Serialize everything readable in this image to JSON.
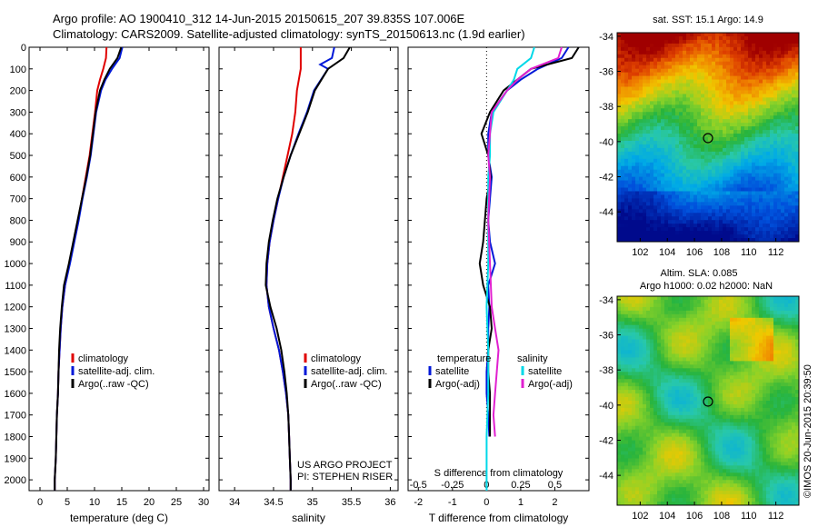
{
  "header": {
    "line1": "Argo profile: AO 1900410_312 14-Jun-2015 20150615_207 39.835S 107.006E",
    "line2": "Climatology: CARS2009. Satellite-adjusted climatology: synTS_20150613.nc (1.9d earlier)"
  },
  "colors": {
    "climatology": "#e00000",
    "satellite": "#0018d8",
    "argo": "#000000",
    "sat_salinity": "#00d8e8",
    "argo_salinity": "#e020d0"
  },
  "chart_data": [
    {
      "type": "line",
      "name": "temperature",
      "xlabel": "temperature (deg C)",
      "xlim": [
        -2,
        31
      ],
      "ylim": [
        2050,
        0
      ],
      "xticks": [
        "0",
        "5",
        "10",
        "15",
        "20",
        "25",
        "30"
      ],
      "yticks": [
        "0",
        "100",
        "200",
        "300",
        "400",
        "500",
        "600",
        "700",
        "800",
        "900",
        "1000",
        "1100",
        "1200",
        "1300",
        "1400",
        "1500",
        "1600",
        "1700",
        "1800",
        "1900",
        "2000"
      ],
      "legend": [
        "climatology",
        "satellite-adj. clim.",
        "Argo(..raw -QC)"
      ],
      "series": [
        {
          "name": "climatology",
          "depth": [
            0,
            50,
            100,
            150,
            200,
            300,
            400,
            500,
            600,
            700,
            800,
            900,
            1000,
            1100,
            1200,
            1300,
            1400,
            1500,
            1600,
            1700,
            1800,
            1900,
            2000,
            2050
          ],
          "values": [
            12.2,
            12.1,
            11.6,
            11.0,
            10.5,
            10.1,
            9.6,
            9.1,
            8.4,
            7.7,
            7.0,
            6.2,
            5.4,
            4.6,
            4.1,
            3.8,
            3.6,
            3.4,
            3.3,
            3.1,
            3.0,
            2.9,
            2.7,
            2.7
          ]
        },
        {
          "name": "satellite-adj. clim.",
          "depth": [
            0,
            50,
            100,
            150,
            200,
            300,
            400,
            500,
            600,
            700,
            800,
            900,
            1000,
            1100,
            1200,
            1300,
            1400,
            1500,
            1600,
            1700,
            1800,
            1900,
            2000,
            2050
          ],
          "values": [
            15.1,
            14.6,
            13.2,
            12.0,
            11.2,
            10.3,
            9.8,
            9.3,
            8.6,
            7.8,
            7.1,
            6.3,
            5.5,
            4.6,
            4.1,
            3.8,
            3.6,
            3.4,
            3.3,
            3.1,
            3.0,
            2.9,
            2.7,
            2.7
          ]
        },
        {
          "name": "Argo",
          "depth": [
            0,
            50,
            100,
            150,
            200,
            300,
            400,
            500,
            600,
            700,
            800,
            900,
            1000,
            1100,
            1200,
            1300,
            1400,
            1500,
            1600,
            1700,
            1800,
            1900,
            2000,
            2050
          ],
          "values": [
            14.9,
            14.2,
            12.8,
            11.8,
            11.0,
            10.2,
            9.7,
            9.2,
            8.5,
            7.7,
            6.9,
            6.1,
            5.3,
            4.4,
            4.0,
            3.7,
            3.5,
            3.4,
            3.3,
            3.1,
            3.0,
            2.9,
            2.7,
            2.7
          ]
        }
      ]
    },
    {
      "type": "line",
      "name": "salinity",
      "xlabel": "salinity",
      "xlim": [
        33.8,
        36.1
      ],
      "ylim": [
        2050,
        0
      ],
      "xticks": [
        "34",
        "34.5",
        "35",
        "35.5",
        "36"
      ],
      "legend": [
        "climatology",
        "satellite-adj. clim.",
        "Argo(..raw -QC)"
      ],
      "annotation": [
        "US ARGO PROJECT",
        "PI: STEPHEN RISER"
      ],
      "series": [
        {
          "name": "climatology",
          "depth": [
            0,
            50,
            100,
            200,
            300,
            400,
            500,
            600,
            700,
            800,
            900,
            1000,
            1100,
            1200,
            1300,
            1400,
            1500,
            1600,
            1700,
            1800,
            1900,
            2000,
            2050
          ],
          "values": [
            34.85,
            34.85,
            34.85,
            34.8,
            34.78,
            34.74,
            34.68,
            34.62,
            34.56,
            34.5,
            34.45,
            34.42,
            34.41,
            34.44,
            34.5,
            34.57,
            34.62,
            34.66,
            34.69,
            34.7,
            34.71,
            34.72,
            34.72
          ]
        },
        {
          "name": "satellite-adj. clim.",
          "depth": [
            0,
            50,
            80,
            100,
            200,
            300,
            400,
            500,
            600,
            700,
            800,
            900,
            1000,
            1100,
            1200,
            1300,
            1400,
            1500,
            1600,
            1700,
            1800,
            1900,
            2000,
            2050
          ],
          "values": [
            35.28,
            35.25,
            35.1,
            35.2,
            35.02,
            34.93,
            34.82,
            34.72,
            34.63,
            34.56,
            34.5,
            34.45,
            34.42,
            34.41,
            34.44,
            34.5,
            34.57,
            34.62,
            34.66,
            34.69,
            34.7,
            34.71,
            34.72,
            34.72
          ]
        },
        {
          "name": "Argo",
          "depth": [
            0,
            50,
            100,
            200,
            300,
            400,
            500,
            600,
            700,
            800,
            900,
            1000,
            1100,
            1200,
            1300,
            1400,
            1500,
            1600,
            1700,
            1800,
            1900,
            2000,
            2050
          ],
          "values": [
            35.48,
            35.4,
            35.2,
            35.03,
            34.94,
            34.83,
            34.72,
            34.63,
            34.55,
            34.49,
            34.44,
            34.41,
            34.4,
            34.46,
            34.54,
            34.6,
            34.64,
            34.67,
            34.69,
            34.7,
            34.71,
            34.72,
            34.72
          ]
        }
      ]
    },
    {
      "type": "line",
      "name": "difference",
      "xlabel": "T difference from climatology",
      "xlabel_top": "S difference from climatology",
      "xlim": [
        -2.3,
        3.0
      ],
      "ylim": [
        2050,
        0
      ],
      "xticks": [
        "-2",
        "-1",
        "0",
        "1",
        "2"
      ],
      "xticks_top": [
        "-0.5",
        "-0.25",
        "0",
        "0.25",
        "0.5"
      ],
      "legend_left_title": "temperature",
      "legend_right_title": "salinity",
      "legend_left": [
        "satellite",
        "Argo(-adj)"
      ],
      "legend_right": [
        "satellite",
        "Argo(-adj)"
      ],
      "series": [
        {
          "name": "T satellite",
          "depth": [
            0,
            50,
            100,
            150,
            200,
            300,
            400,
            500,
            600,
            700,
            800,
            900,
            1000,
            1100,
            1200,
            1300,
            1400,
            1500,
            1600,
            1700,
            1800
          ],
          "values": [
            2.4,
            2.2,
            1.5,
            1.0,
            0.6,
            0.15,
            0.05,
            0.05,
            0.15,
            0.1,
            0.05,
            0.1,
            0.25,
            0.05,
            0.08,
            0.05,
            0.05,
            0.0,
            0.0,
            0.05,
            0.08
          ]
        },
        {
          "name": "T Argo",
          "depth": [
            0,
            50,
            100,
            150,
            200,
            300,
            400,
            500,
            600,
            700,
            800,
            900,
            1000,
            1100,
            1200,
            1300,
            1400,
            1500,
            1600,
            1700,
            1800
          ],
          "values": [
            2.7,
            2.5,
            1.3,
            0.9,
            0.5,
            0.1,
            -0.15,
            0.05,
            0.12,
            0.0,
            -0.05,
            -0.1,
            -0.2,
            -0.1,
            0.1,
            0.15,
            0.05,
            0.05,
            0.1,
            0.1,
            0.1
          ]
        },
        {
          "name": "S satellite",
          "depth": [
            0,
            50,
            100,
            150,
            200,
            300,
            400,
            500,
            600,
            800,
            1000,
            1200,
            1400,
            1600,
            1800,
            2000,
            2050
          ],
          "values": [
            1.4,
            1.3,
            0.9,
            0.8,
            0.6,
            0.2,
            0.1,
            0.1,
            0.05,
            0.05,
            0.05,
            0.0,
            0.05,
            0.05,
            0.0,
            0.0,
            0.0
          ]
        },
        {
          "name": "S Argo",
          "depth": [
            0,
            50,
            100,
            150,
            200,
            300,
            400,
            500,
            600,
            800,
            1000,
            1200,
            1300,
            1400,
            1500,
            1600,
            1700,
            1800
          ],
          "values": [
            2.2,
            2.1,
            1.3,
            0.9,
            0.6,
            0.15,
            0.1,
            0.05,
            0.1,
            0.05,
            0.1,
            0.15,
            0.25,
            0.35,
            0.3,
            0.25,
            0.2,
            0.25
          ]
        }
      ]
    },
    {
      "type": "heatmap",
      "name": "sst_map",
      "title": "sat. SST: 15.1  Argo: 14.9",
      "xticks": [
        "102",
        "104",
        "106",
        "108",
        "110",
        "112"
      ],
      "yticks": [
        "-34",
        "-36",
        "-38",
        "-40",
        "-42",
        "-44"
      ],
      "marker": {
        "lon": 107.0,
        "lat": -39.8
      }
    },
    {
      "type": "heatmap",
      "name": "sla_map",
      "title_line1": "Altim. SLA: 0.085",
      "title_line2": "Argo h1000: 0.02 h2000: NaN",
      "xticks": [
        "102",
        "104",
        "106",
        "108",
        "110",
        "112"
      ],
      "yticks": [
        "-34",
        "-36",
        "-38",
        "-40",
        "-42",
        "-44"
      ],
      "marker": {
        "lon": 107.0,
        "lat": -39.8
      }
    }
  ],
  "footer_vertical": "©IMOS 20-Jun-2015 20:39:50"
}
